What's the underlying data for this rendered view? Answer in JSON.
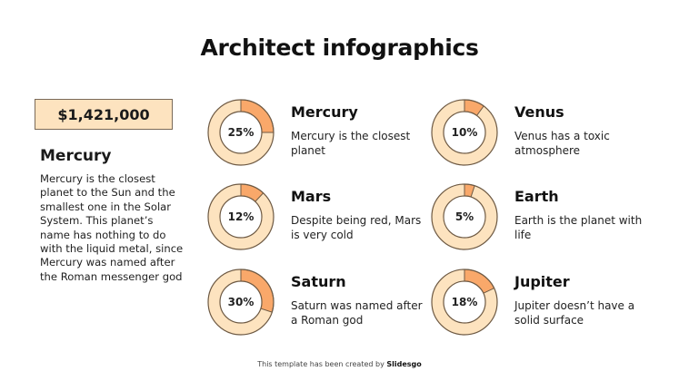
{
  "title": "Architect infographics",
  "summary": {
    "price": "$1,421,000",
    "heading": "Mercury",
    "body": "Mercury is the closest planet to the Sun and the smallest one in the Solar System. This planet’s name has nothing to do with the liquid metal, since Mercury was named after the Roman messenger god"
  },
  "colors": {
    "ring_base": "#fde3bf",
    "ring_fill": "#f9a86a",
    "ring_border": "#6e5a44",
    "price_bg": "#fde3bf"
  },
  "items": [
    {
      "name": "Mercury",
      "pct_label": "25%",
      "value": 25,
      "desc": "Mercury is the closest planet"
    },
    {
      "name": "Mars",
      "pct_label": "12%",
      "value": 12,
      "desc": "Despite being red, Mars is very cold"
    },
    {
      "name": "Saturn",
      "pct_label": "30%",
      "value": 30,
      "desc": "Saturn was named after a Roman god"
    },
    {
      "name": "Venus",
      "pct_label": "10%",
      "value": 10,
      "desc": "Venus has a toxic atmosphere"
    },
    {
      "name": "Earth",
      "pct_label": "5%",
      "value": 5,
      "desc": "Earth is the planet with life"
    },
    {
      "name": "Jupiter",
      "pct_label": "18%",
      "value": 18,
      "desc": "Jupiter doesn’t have a solid surface"
    }
  ],
  "footer": {
    "text": "This template has been created by ",
    "brand": "Slidesgo"
  },
  "chart_data": {
    "type": "pie",
    "subtype": "donut",
    "title": "Architect infographics",
    "categories": [
      "Mercury",
      "Mars",
      "Saturn",
      "Venus",
      "Earth",
      "Jupiter"
    ],
    "values": [
      25,
      12,
      30,
      10,
      5,
      18
    ],
    "unit": "%",
    "annotations": [
      "Mercury is the closest planet",
      "Despite being red, Mars is very cold",
      "Saturn was named after a Roman god",
      "Venus has a toxic atmosphere",
      "Earth is the planet with life",
      "Jupiter doesn’t have a solid surface"
    ],
    "highlight_value": "$1,421,000",
    "legend": "none"
  }
}
